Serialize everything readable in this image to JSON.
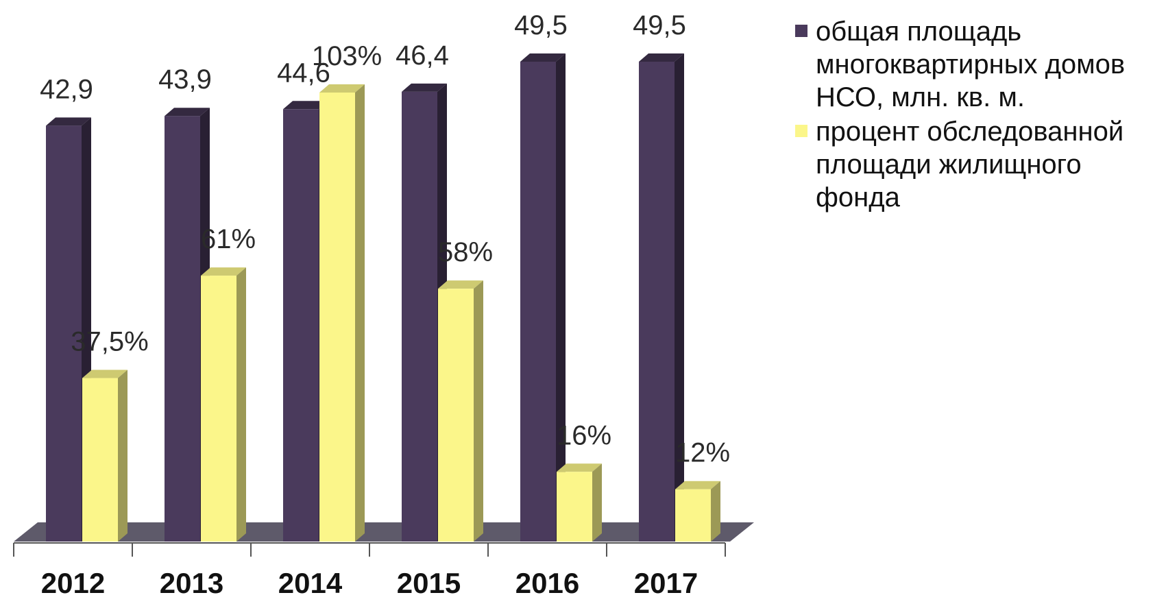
{
  "colors": {
    "series1": "#4a3a5c",
    "series2": "#fbf68a"
  },
  "chart_data": {
    "type": "bar",
    "categories": [
      "2012",
      "2013",
      "2014",
      "2015",
      "2016",
      "2017"
    ],
    "series": [
      {
        "name": "общая площадь многоквартирных домов НСО, млн. кв. м.",
        "values": [
          42.9,
          43.9,
          44.6,
          46.4,
          49.5,
          49.5
        ],
        "labels": [
          "42,9",
          "43,9",
          "44,6",
          "46,4",
          "49,5",
          "49,5"
        ]
      },
      {
        "name": "процент обследованной площади жилищного фонда",
        "values": [
          37.5,
          61,
          103,
          58,
          16,
          12
        ],
        "labels": [
          "37,5%",
          "61%",
          "103%",
          "58%",
          "16%",
          "12%"
        ]
      }
    ],
    "legend_position": "right",
    "grid": false
  }
}
